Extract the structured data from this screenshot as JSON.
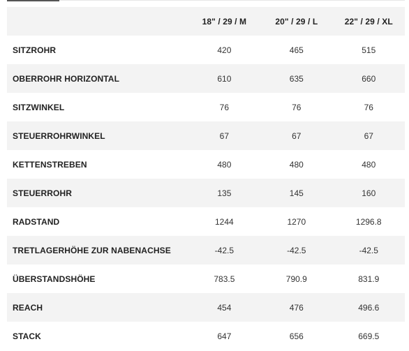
{
  "table": {
    "headers": [
      "",
      "18\" / 29 / M",
      "20\" / 29 / L",
      "22\" / 29 / XL"
    ],
    "rows": [
      {
        "label": "SITZROHR",
        "values": [
          "420",
          "465",
          "515"
        ]
      },
      {
        "label": "OBERROHR HORIZONTAL",
        "values": [
          "610",
          "635",
          "660"
        ]
      },
      {
        "label": "SITZWINKEL",
        "values": [
          "76",
          "76",
          "76"
        ]
      },
      {
        "label": "STEUERROHRWINKEL",
        "values": [
          "67",
          "67",
          "67"
        ]
      },
      {
        "label": "KETTENSTREBEN",
        "values": [
          "480",
          "480",
          "480"
        ]
      },
      {
        "label": "STEUERROHR",
        "values": [
          "135",
          "145",
          "160"
        ]
      },
      {
        "label": "RADSTAND",
        "values": [
          "1244",
          "1270",
          "1296.8"
        ]
      },
      {
        "label": "TRETLAGERHÖHE ZUR NABENACHSE",
        "values": [
          "-42.5",
          "-42.5",
          "-42.5"
        ]
      },
      {
        "label": "ÜBERSTANDSHÖHE",
        "values": [
          "783.5",
          "790.9",
          "831.9"
        ]
      },
      {
        "label": "REACH",
        "values": [
          "454",
          "476",
          "496.6"
        ]
      },
      {
        "label": "STACK",
        "values": [
          "647",
          "656",
          "669.5"
        ]
      }
    ]
  }
}
